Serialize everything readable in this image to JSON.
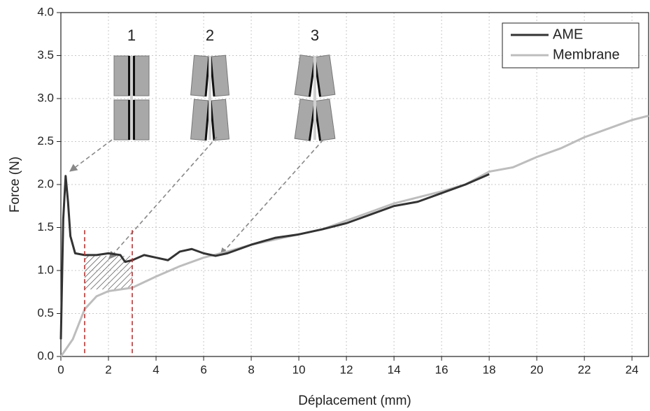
{
  "chart_data": {
    "type": "line",
    "x_label": "Déplacement (mm)",
    "y_label": "Force (N)",
    "xlim": [
      0,
      24.7
    ],
    "ylim": [
      0,
      4
    ],
    "xticks": [
      0,
      2,
      4,
      6,
      8,
      10,
      12,
      14,
      16,
      18,
      20,
      22,
      24
    ],
    "yticks": [
      {
        "value": 0,
        "label": "0.0"
      },
      0.5,
      {
        "value": 1,
        "label": "1.0"
      },
      1.5,
      {
        "value": 2,
        "label": "2.0"
      },
      2.5,
      {
        "value": 3,
        "label": "3.0"
      },
      3.5,
      {
        "value": 4,
        "label": "4.0"
      }
    ],
    "grid": true,
    "legend": "top-right",
    "annotations": [
      "1",
      "2",
      "3"
    ],
    "reference_lines": [
      {
        "x": 1,
        "color": "#e02020"
      },
      {
        "x": 3,
        "color": "#e02020"
      }
    ],
    "series": [
      {
        "name": "AME",
        "color": "#333333",
        "x": [
          0,
          0.1,
          0.2,
          0.3,
          0.4,
          0.6,
          1,
          1.5,
          2,
          2.5,
          2.7,
          3,
          3.5,
          4,
          4.5,
          5,
          5.5,
          6,
          6.5,
          7,
          8,
          9,
          10,
          11,
          12,
          13,
          14,
          15,
          16,
          17,
          18
        ],
        "values": [
          0.2,
          1.6,
          2.1,
          1.8,
          1.4,
          1.2,
          1.18,
          1.18,
          1.2,
          1.18,
          1.1,
          1.12,
          1.18,
          1.15,
          1.12,
          1.22,
          1.25,
          1.2,
          1.17,
          1.2,
          1.3,
          1.38,
          1.42,
          1.48,
          1.55,
          1.65,
          1.75,
          1.8,
          1.9,
          2.0,
          2.12
        ]
      },
      {
        "name": "Membrane",
        "color": "#bdbdbd",
        "x": [
          0,
          0.5,
          1,
          1.5,
          2,
          3,
          4,
          5,
          6,
          7,
          8,
          9,
          10,
          11,
          12,
          13,
          14,
          15,
          16,
          17,
          18,
          19,
          20,
          21,
          22,
          23,
          24,
          24.7
        ],
        "values": [
          0,
          0.2,
          0.55,
          0.7,
          0.76,
          0.8,
          0.93,
          1.05,
          1.15,
          1.22,
          1.3,
          1.36,
          1.42,
          1.48,
          1.58,
          1.68,
          1.78,
          1.85,
          1.92,
          2.0,
          2.15,
          2.2,
          2.32,
          2.42,
          2.55,
          2.65,
          2.75,
          2.8
        ]
      }
    ]
  }
}
